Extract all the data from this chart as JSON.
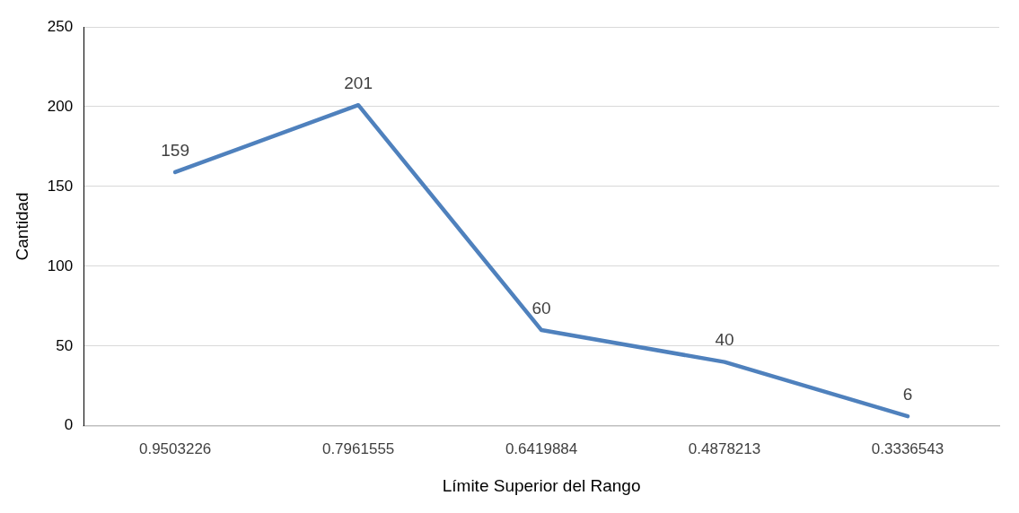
{
  "chart_data": {
    "type": "line",
    "xlabel": "Límite Superior del Rango",
    "ylabel": "Cantidad",
    "categories": [
      "0.9503226",
      "0.7961555",
      "0.6419884",
      "0.4878213",
      "0.3336543"
    ],
    "series": [
      {
        "color": "#4f81bd",
        "values": [
          159,
          201,
          60,
          40,
          6
        ]
      }
    ],
    "ylim": [
      0,
      250
    ],
    "yticks": [
      0,
      50,
      100,
      150,
      200,
      250
    ],
    "grid": "y",
    "legend": false,
    "marker": "none",
    "line_style": "solid",
    "data_labels": true
  }
}
